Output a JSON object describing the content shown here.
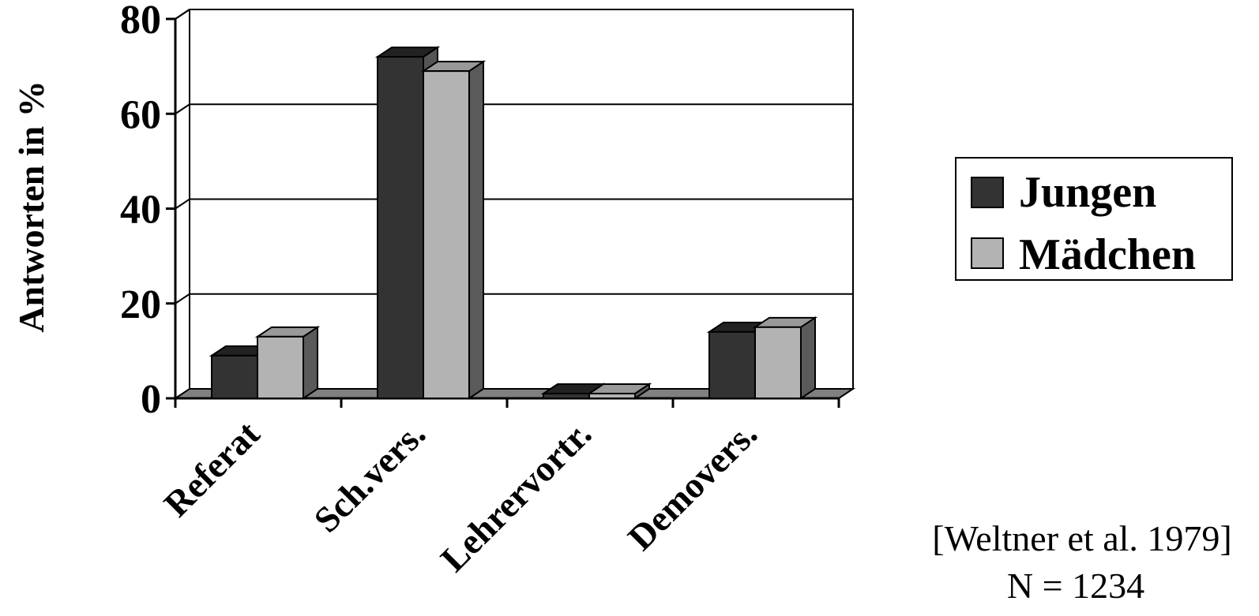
{
  "chart_data": {
    "type": "bar",
    "ylabel": "Antworten in %",
    "ylim": [
      0,
      80
    ],
    "yticks": [
      "0",
      "20",
      "40",
      "60",
      "80"
    ],
    "categories": [
      "Referat",
      "Sch.vers.",
      "Lehrervortr.",
      "Demovers."
    ],
    "series": [
      {
        "name": "Jungen",
        "values": [
          9,
          72,
          1,
          14
        ]
      },
      {
        "name": "Mädchen",
        "values": [
          13,
          69,
          1,
          15
        ]
      }
    ],
    "grid": true,
    "legend_position": "right",
    "three_d": true
  },
  "colors": {
    "Jungen": "#333333",
    "Mädchen": "#b3b3b3",
    "floor": "#808080"
  },
  "source": {
    "citation": "[Weltner et al. 1979]",
    "sample": "N = 1234"
  }
}
